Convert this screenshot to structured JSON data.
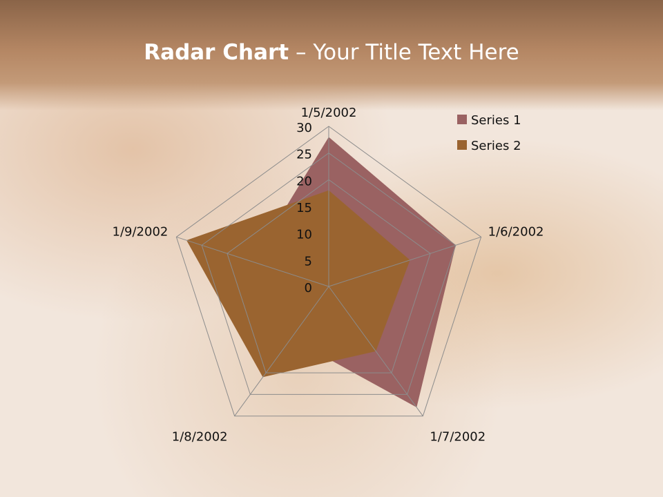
{
  "slide": {
    "title_bold": "Radar Chart",
    "title_rest": " – Your Title Text Here"
  },
  "chart_data": {
    "type": "radar",
    "categories": [
      "1/5/2002",
      "1/6/2002",
      "1/7/2002",
      "1/8/2002",
      "1/9/2002"
    ],
    "series": [
      {
        "name": "Series 1",
        "values": [
          28,
          25,
          28,
          12,
          15
        ],
        "color": "#9a6262"
      },
      {
        "name": "Series 2",
        "values": [
          18,
          16,
          15,
          21,
          28
        ],
        "color": "#9a6430"
      }
    ],
    "rlim": [
      0,
      30
    ],
    "rticks": [
      0,
      5,
      10,
      15,
      20,
      25,
      30
    ],
    "gridlines": [
      20,
      25,
      30
    ],
    "legend": "top-right"
  }
}
